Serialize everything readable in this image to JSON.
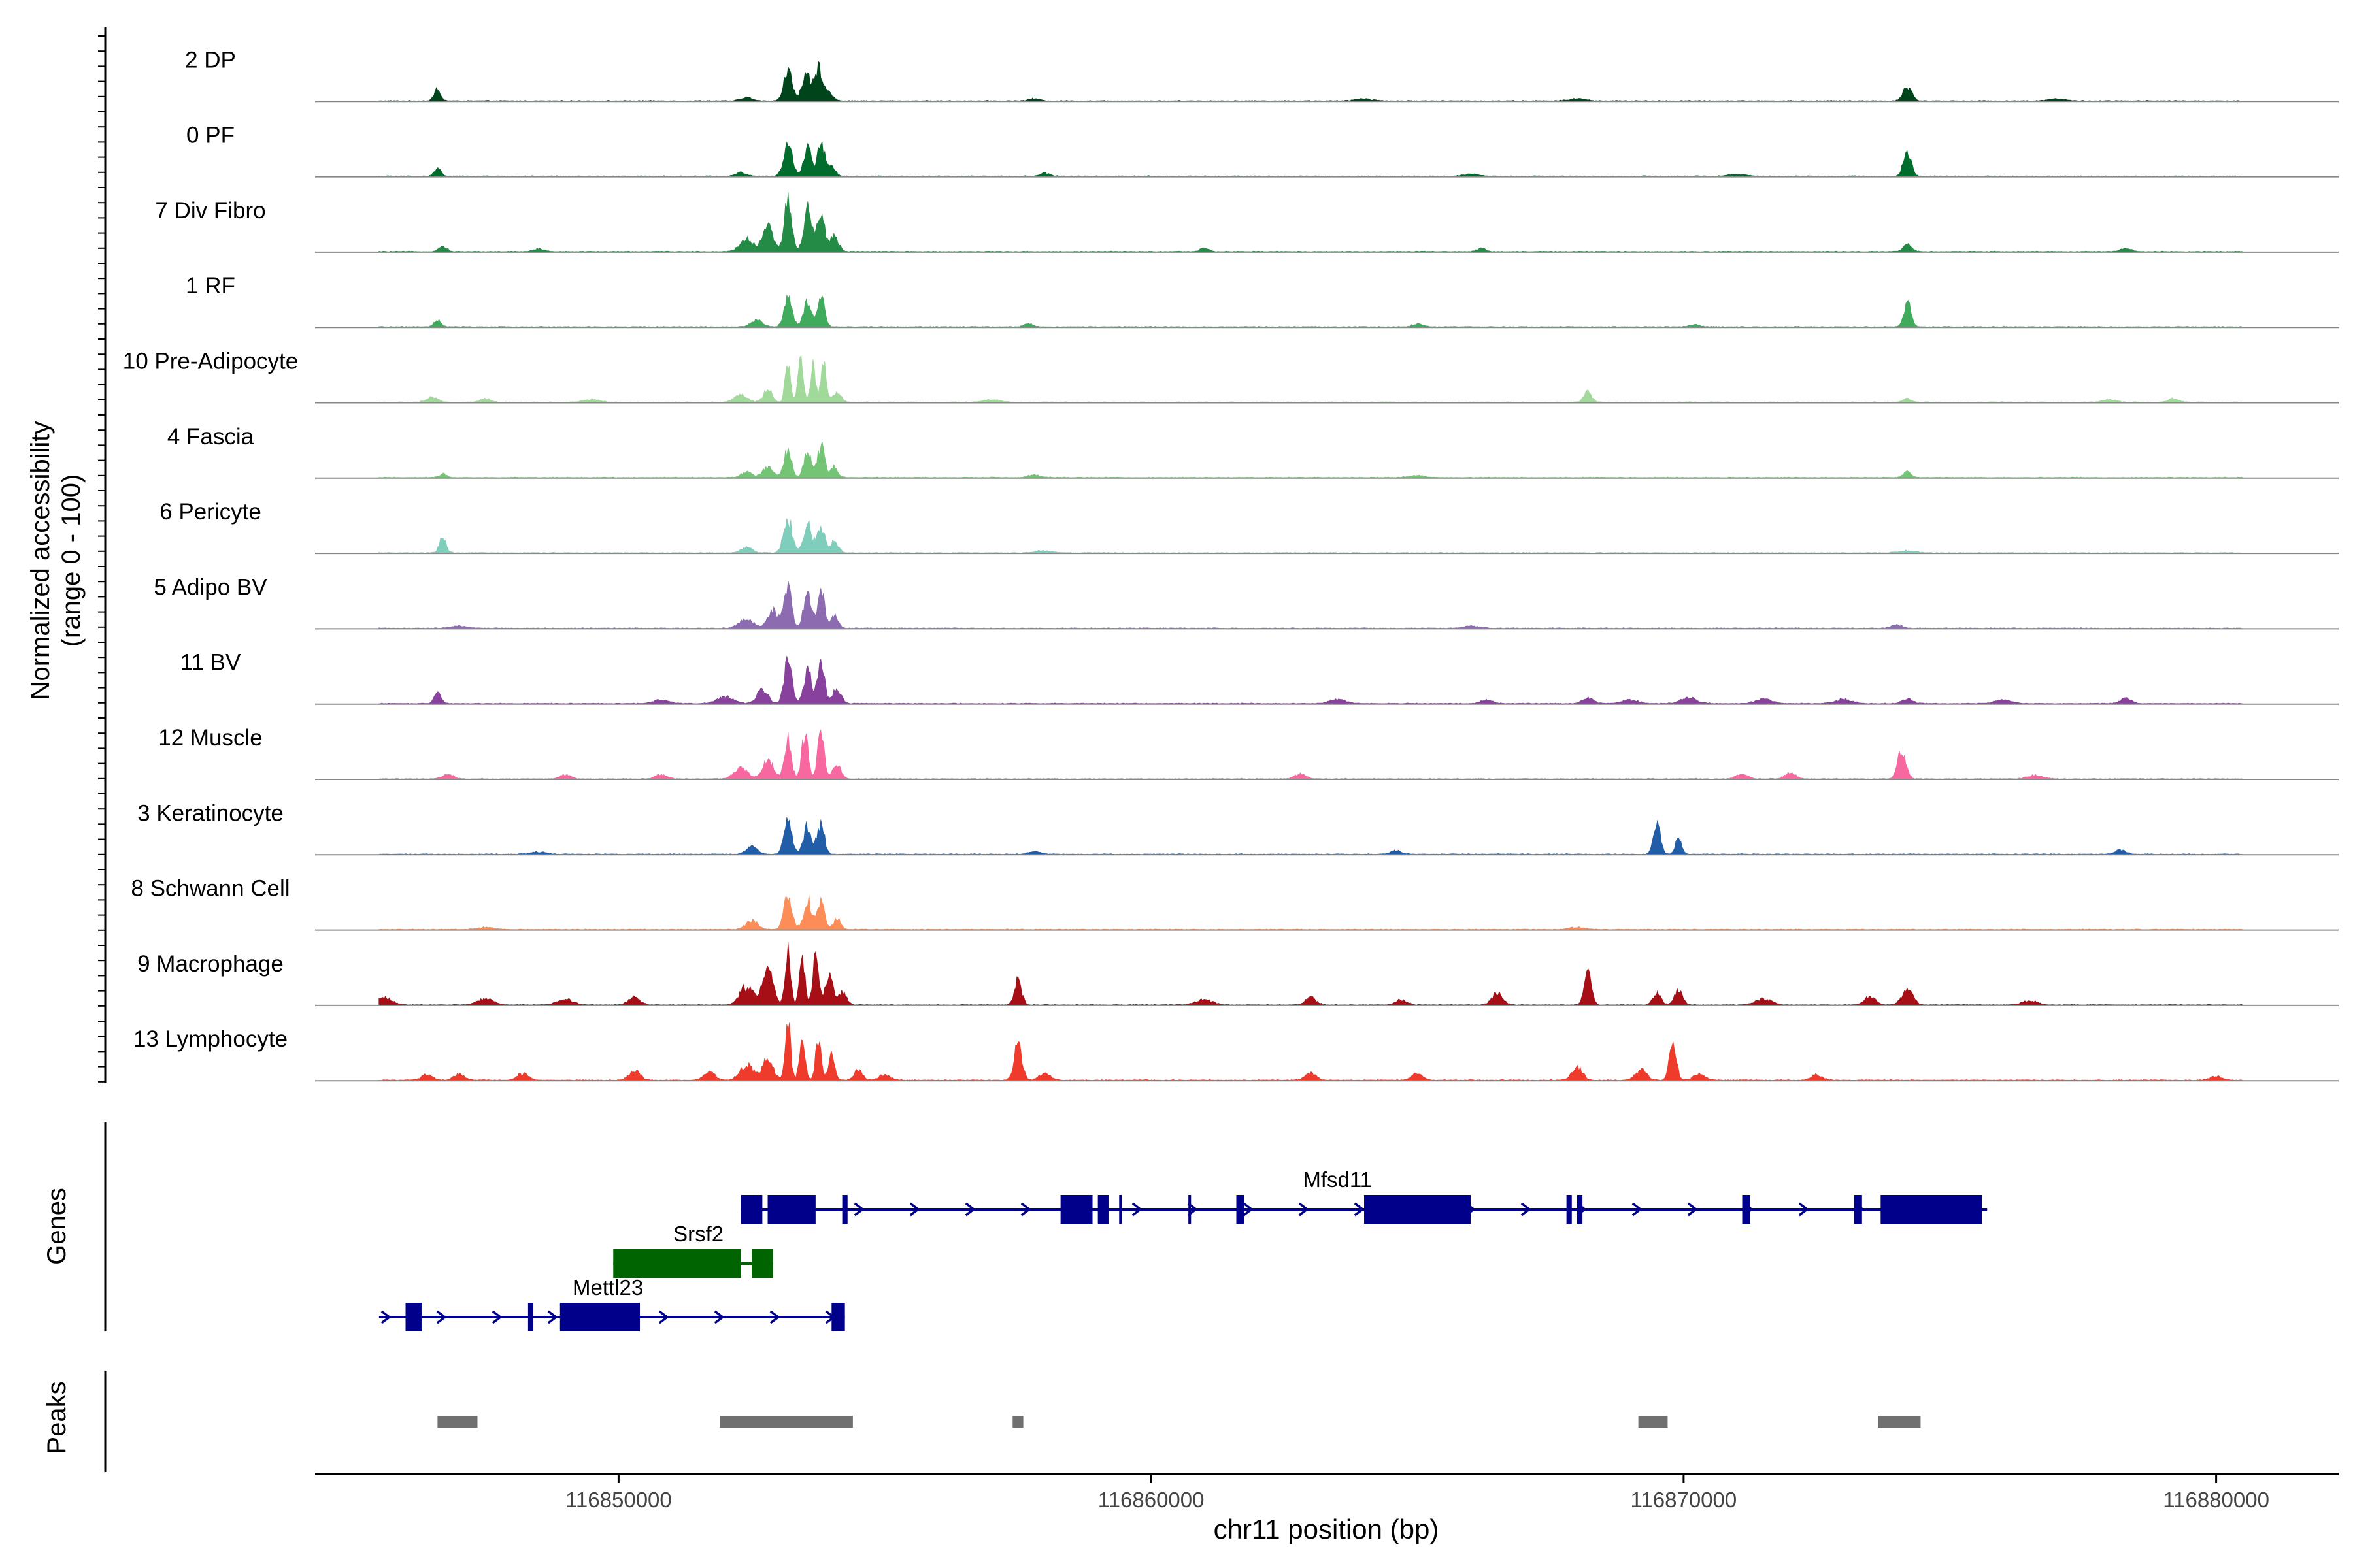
{
  "chart_data": {
    "type": "area",
    "title": "",
    "ylabel_line1": "Normalized accessibility",
    "ylabel_line2": "(range 0 - 100)",
    "genes_label": "Genes",
    "peaks_label": "Peaks",
    "xlabel": "chr11 position (bp)",
    "xlim": [
      116844300,
      116882300
    ],
    "ylim": [
      0,
      100
    ],
    "x_ticks": [
      116850000,
      116860000,
      116870000,
      116880000
    ],
    "x_tick_labels": [
      "116850000",
      "116860000",
      "116870000",
      "116880000"
    ],
    "tracks": [
      {
        "name": "2 DP",
        "color": "#00441b",
        "peaks": [
          [
            116852400,
            5,
            0.2
          ],
          [
            116853180,
            42,
            0.16
          ],
          [
            116853520,
            38,
            0.16
          ],
          [
            116853750,
            45,
            0.14
          ],
          [
            116853950,
            12,
            0.16
          ],
          [
            116846600,
            18,
            0.12
          ],
          [
            116874200,
            20,
            0.16
          ],
          [
            116857800,
            3,
            0.2
          ],
          [
            116864000,
            3,
            0.3
          ],
          [
            116868000,
            3,
            0.3
          ],
          [
            116877000,
            3,
            0.3
          ]
        ]
      },
      {
        "name": "0 PF",
        "color": "#006d2c",
        "peaks": [
          [
            116852300,
            5,
            0.2
          ],
          [
            116853180,
            45,
            0.16
          ],
          [
            116853550,
            40,
            0.15
          ],
          [
            116853800,
            50,
            0.13
          ],
          [
            116854000,
            14,
            0.15
          ],
          [
            116846600,
            12,
            0.12
          ],
          [
            116874200,
            38,
            0.14
          ],
          [
            116858000,
            4,
            0.2
          ],
          [
            116866000,
            3,
            0.3
          ],
          [
            116871000,
            3,
            0.3
          ]
        ]
      },
      {
        "name": "7 Div Fibro",
        "color": "#238b45",
        "peaks": [
          [
            116852400,
            18,
            0.25
          ],
          [
            116852800,
            35,
            0.2
          ],
          [
            116853180,
            70,
            0.14
          ],
          [
            116853550,
            58,
            0.15
          ],
          [
            116853800,
            52,
            0.14
          ],
          [
            116854050,
            22,
            0.16
          ],
          [
            116846700,
            7,
            0.15
          ],
          [
            116861000,
            5,
            0.15
          ],
          [
            116866200,
            5,
            0.15
          ],
          [
            116874200,
            10,
            0.15
          ],
          [
            116848500,
            4,
            0.2
          ],
          [
            116878300,
            4,
            0.2
          ]
        ]
      },
      {
        "name": "1 RF",
        "color": "#41ab5d",
        "peaks": [
          [
            116852600,
            10,
            0.2
          ],
          [
            116853180,
            40,
            0.15
          ],
          [
            116853550,
            35,
            0.15
          ],
          [
            116853800,
            42,
            0.13
          ],
          [
            116846600,
            10,
            0.12
          ],
          [
            116874200,
            34,
            0.14
          ],
          [
            116857700,
            5,
            0.15
          ],
          [
            116865000,
            4,
            0.2
          ],
          [
            116870200,
            3,
            0.2
          ]
        ]
      },
      {
        "name": "10 Pre-Adipocyte",
        "color": "#a1d99b",
        "peaks": [
          [
            116852300,
            10,
            0.25
          ],
          [
            116852800,
            20,
            0.15
          ],
          [
            116853180,
            58,
            0.1
          ],
          [
            116853420,
            62,
            0.1
          ],
          [
            116853650,
            50,
            0.1
          ],
          [
            116853850,
            55,
            0.1
          ],
          [
            116854100,
            15,
            0.15
          ],
          [
            116846500,
            7,
            0.2
          ],
          [
            116847500,
            5,
            0.2
          ],
          [
            116868200,
            14,
            0.15
          ],
          [
            116878000,
            4,
            0.25
          ],
          [
            116879200,
            5,
            0.2
          ],
          [
            116874200,
            5,
            0.15
          ],
          [
            116857000,
            4,
            0.3
          ],
          [
            116849500,
            4,
            0.3
          ]
        ]
      },
      {
        "name": "4 Fascia",
        "color": "#74c476",
        "peaks": [
          [
            116852400,
            8,
            0.2
          ],
          [
            116852800,
            14,
            0.2
          ],
          [
            116853180,
            40,
            0.14
          ],
          [
            116853550,
            38,
            0.14
          ],
          [
            116853800,
            45,
            0.13
          ],
          [
            116854050,
            15,
            0.14
          ],
          [
            116846700,
            5,
            0.15
          ],
          [
            116874200,
            8,
            0.15
          ],
          [
            116857800,
            4,
            0.2
          ],
          [
            116865000,
            3,
            0.3
          ]
        ]
      },
      {
        "name": "6 Pericyte",
        "color": "#7fcdbb",
        "peaks": [
          [
            116846700,
            24,
            0.12
          ],
          [
            116852400,
            8,
            0.2
          ],
          [
            116853180,
            48,
            0.16
          ],
          [
            116853550,
            42,
            0.15
          ],
          [
            116853800,
            38,
            0.14
          ],
          [
            116854050,
            16,
            0.15
          ],
          [
            116858000,
            3,
            0.3
          ],
          [
            116874200,
            3,
            0.3
          ]
        ]
      },
      {
        "name": "5 Adipo BV",
        "color": "#8c6bb1",
        "peaks": [
          [
            116852400,
            14,
            0.25
          ],
          [
            116852900,
            25,
            0.2
          ],
          [
            116853180,
            58,
            0.14
          ],
          [
            116853550,
            50,
            0.15
          ],
          [
            116853800,
            55,
            0.13
          ],
          [
            116854050,
            18,
            0.15
          ],
          [
            116847000,
            3,
            0.3
          ],
          [
            116874000,
            5,
            0.2
          ],
          [
            116866000,
            3,
            0.3
          ]
        ]
      },
      {
        "name": "11 BV",
        "color": "#88419d",
        "peaks": [
          [
            116846600,
            18,
            0.12
          ],
          [
            116852000,
            10,
            0.3
          ],
          [
            116852700,
            20,
            0.2
          ],
          [
            116853180,
            62,
            0.14
          ],
          [
            116853550,
            48,
            0.15
          ],
          [
            116853800,
            60,
            0.13
          ],
          [
            116854100,
            22,
            0.15
          ],
          [
            116850800,
            5,
            0.3
          ],
          [
            116863500,
            6,
            0.3
          ],
          [
            116868200,
            8,
            0.2
          ],
          [
            116869000,
            5,
            0.3
          ],
          [
            116870100,
            8,
            0.3
          ],
          [
            116871500,
            6,
            0.3
          ],
          [
            116873000,
            6,
            0.3
          ],
          [
            116874200,
            7,
            0.2
          ],
          [
            116876000,
            5,
            0.3
          ],
          [
            116878300,
            7,
            0.2
          ],
          [
            116866300,
            6,
            0.2
          ]
        ]
      },
      {
        "name": "12 Muscle",
        "color": "#f768a1",
        "peaks": [
          [
            116852300,
            15,
            0.25
          ],
          [
            116852800,
            28,
            0.2
          ],
          [
            116853180,
            55,
            0.13
          ],
          [
            116853500,
            62,
            0.12
          ],
          [
            116853800,
            64,
            0.12
          ],
          [
            116854100,
            20,
            0.15
          ],
          [
            116846800,
            7,
            0.2
          ],
          [
            116849000,
            6,
            0.2
          ],
          [
            116850800,
            6,
            0.2
          ],
          [
            116862800,
            7,
            0.2
          ],
          [
            116871100,
            8,
            0.2
          ],
          [
            116872000,
            8,
            0.2
          ],
          [
            116874100,
            42,
            0.15
          ],
          [
            116876600,
            5,
            0.3
          ]
        ]
      },
      {
        "name": "3 Keratinocyte",
        "color": "#225ea8",
        "peaks": [
          [
            116852500,
            12,
            0.2
          ],
          [
            116853180,
            45,
            0.15
          ],
          [
            116853550,
            40,
            0.15
          ],
          [
            116853800,
            44,
            0.13
          ],
          [
            116869500,
            45,
            0.13
          ],
          [
            116869900,
            22,
            0.12
          ],
          [
            116857800,
            5,
            0.2
          ],
          [
            116864600,
            5,
            0.2
          ],
          [
            116878200,
            6,
            0.2
          ],
          [
            116848500,
            3,
            0.3
          ]
        ]
      },
      {
        "name": "8 Schwann Cell",
        "color": "#fc8d59",
        "peaks": [
          [
            116852500,
            14,
            0.2
          ],
          [
            116853180,
            48,
            0.15
          ],
          [
            116853550,
            42,
            0.15
          ],
          [
            116853800,
            40,
            0.13
          ],
          [
            116854100,
            15,
            0.15
          ],
          [
            116847500,
            3,
            0.3
          ],
          [
            116868000,
            3,
            0.3
          ]
        ]
      },
      {
        "name": "9 Macrophage",
        "color": "#a50f15",
        "peaks": [
          [
            116845600,
            10,
            0.3
          ],
          [
            116847500,
            8,
            0.3
          ],
          [
            116849000,
            8,
            0.3
          ],
          [
            116850300,
            12,
            0.2
          ],
          [
            116852400,
            26,
            0.25
          ],
          [
            116852800,
            50,
            0.2
          ],
          [
            116853180,
            82,
            0.1
          ],
          [
            116853450,
            70,
            0.1
          ],
          [
            116853700,
            85,
            0.1
          ],
          [
            116853950,
            40,
            0.15
          ],
          [
            116854200,
            18,
            0.15
          ],
          [
            116857500,
            36,
            0.13
          ],
          [
            116863000,
            10,
            0.2
          ],
          [
            116864700,
            8,
            0.2
          ],
          [
            116866500,
            16,
            0.2
          ],
          [
            116868200,
            50,
            0.13
          ],
          [
            116869500,
            18,
            0.15
          ],
          [
            116869900,
            22,
            0.15
          ],
          [
            116871500,
            8,
            0.3
          ],
          [
            116873500,
            12,
            0.2
          ],
          [
            116874200,
            22,
            0.2
          ],
          [
            116861000,
            8,
            0.3
          ],
          [
            116876500,
            6,
            0.3
          ]
        ]
      },
      {
        "name": "13 Lymphocyte",
        "color": "#ef3b2c",
        "peaks": [
          [
            116846400,
            8,
            0.2
          ],
          [
            116847000,
            8,
            0.2
          ],
          [
            116848200,
            10,
            0.2
          ],
          [
            116850300,
            14,
            0.2
          ],
          [
            116851700,
            12,
            0.2
          ],
          [
            116852400,
            22,
            0.25
          ],
          [
            116852800,
            30,
            0.2
          ],
          [
            116853180,
            80,
            0.1
          ],
          [
            116853450,
            70,
            0.1
          ],
          [
            116853750,
            58,
            0.1
          ],
          [
            116854000,
            35,
            0.12
          ],
          [
            116854500,
            15,
            0.15
          ],
          [
            116855000,
            8,
            0.2
          ],
          [
            116857500,
            55,
            0.14
          ],
          [
            116858000,
            10,
            0.2
          ],
          [
            116863000,
            10,
            0.2
          ],
          [
            116865000,
            10,
            0.2
          ],
          [
            116868000,
            18,
            0.2
          ],
          [
            116869200,
            15,
            0.2
          ],
          [
            116869800,
            52,
            0.13
          ],
          [
            116870300,
            10,
            0.2
          ],
          [
            116872500,
            8,
            0.2
          ],
          [
            116880000,
            6,
            0.2
          ]
        ]
      }
    ],
    "genes": [
      {
        "name": "Mfsd11",
        "strand": "+",
        "color": "#00008b",
        "row": 0,
        "label_pos": 116863500,
        "start": 116852300,
        "end": 116875700,
        "exons": [
          [
            116852300,
            116852700
          ],
          [
            116852800,
            116853700
          ],
          [
            116854200,
            116854300
          ],
          [
            116858300,
            116858900
          ],
          [
            116859000,
            116859200
          ],
          [
            116859400,
            116859450
          ],
          [
            116860700,
            116860750
          ],
          [
            116861600,
            116861750
          ],
          [
            116864000,
            116866000
          ],
          [
            116867800,
            116867900
          ],
          [
            116868000,
            116868100
          ],
          [
            116871100,
            116871250
          ],
          [
            116873200,
            116873350
          ],
          [
            116873700,
            116875600
          ]
        ]
      },
      {
        "name": "Srsf2",
        "strand": "-",
        "color": "#006400",
        "row": 1,
        "label_pos": 116851500,
        "start": 116849900,
        "end": 116852900,
        "exons": [
          [
            116849900,
            116852300
          ],
          [
            116852500,
            116852900
          ]
        ]
      },
      {
        "name": "Mettl23",
        "strand": "+",
        "color": "#00008b",
        "row": 2,
        "label_pos": 116849800,
        "start": 116845500,
        "end": 116854250,
        "exons": [
          [
            116846000,
            116846300
          ],
          [
            116848300,
            116848400
          ],
          [
            116848900,
            116850400
          ],
          [
            116854000,
            116854250
          ]
        ]
      }
    ],
    "peaks_track": [
      [
        116846600,
        116847350
      ],
      [
        116851900,
        116854400
      ],
      [
        116857400,
        116857600
      ],
      [
        116869150,
        116869700
      ],
      [
        116873650,
        116874450
      ]
    ]
  }
}
